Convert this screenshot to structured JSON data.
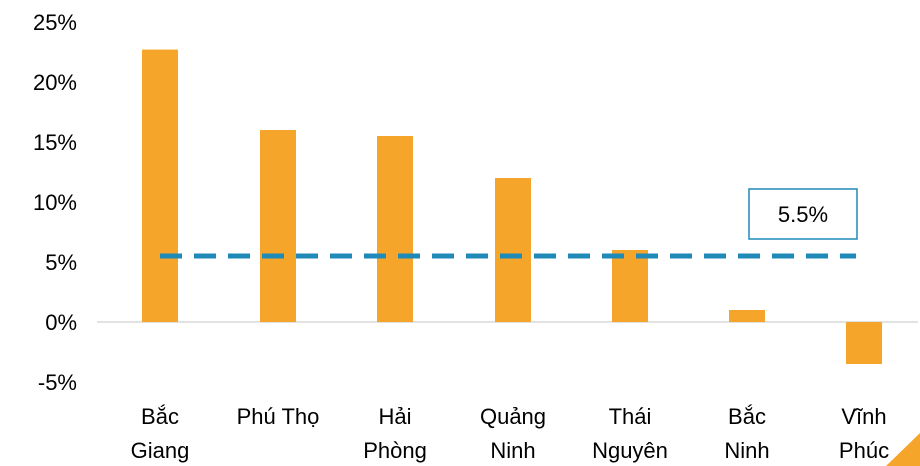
{
  "chart_data": {
    "type": "bar",
    "categories": [
      [
        "Bắc",
        "Giang"
      ],
      [
        "Phú Thọ"
      ],
      [
        "Hải",
        "Phòng"
      ],
      [
        "Quảng",
        "Ninh"
      ],
      [
        "Thái",
        "Nguyên"
      ],
      [
        "Bắc",
        "Ninh"
      ],
      [
        "Vĩnh",
        "Phúc"
      ]
    ],
    "series": [
      {
        "values": [
          22.7,
          16.0,
          15.5,
          12.0,
          6.0,
          1.0,
          -3.5
        ],
        "color": "#F5A52A"
      }
    ],
    "reference_line": {
      "value": 5.5,
      "label": "5.5%",
      "color": "#1F8AB8",
      "style": "dashed"
    },
    "ylim": [
      -5,
      25
    ],
    "yticks": [
      "25%",
      "20%",
      "15%",
      "10%",
      "5%",
      "0%",
      "-5%"
    ],
    "ytick_values": [
      25,
      20,
      15,
      10,
      5,
      0,
      -5
    ],
    "grid": false,
    "legend": "none",
    "title": "",
    "xlabel": "",
    "ylabel": "",
    "corner_accent_color": "#F5A52A"
  }
}
